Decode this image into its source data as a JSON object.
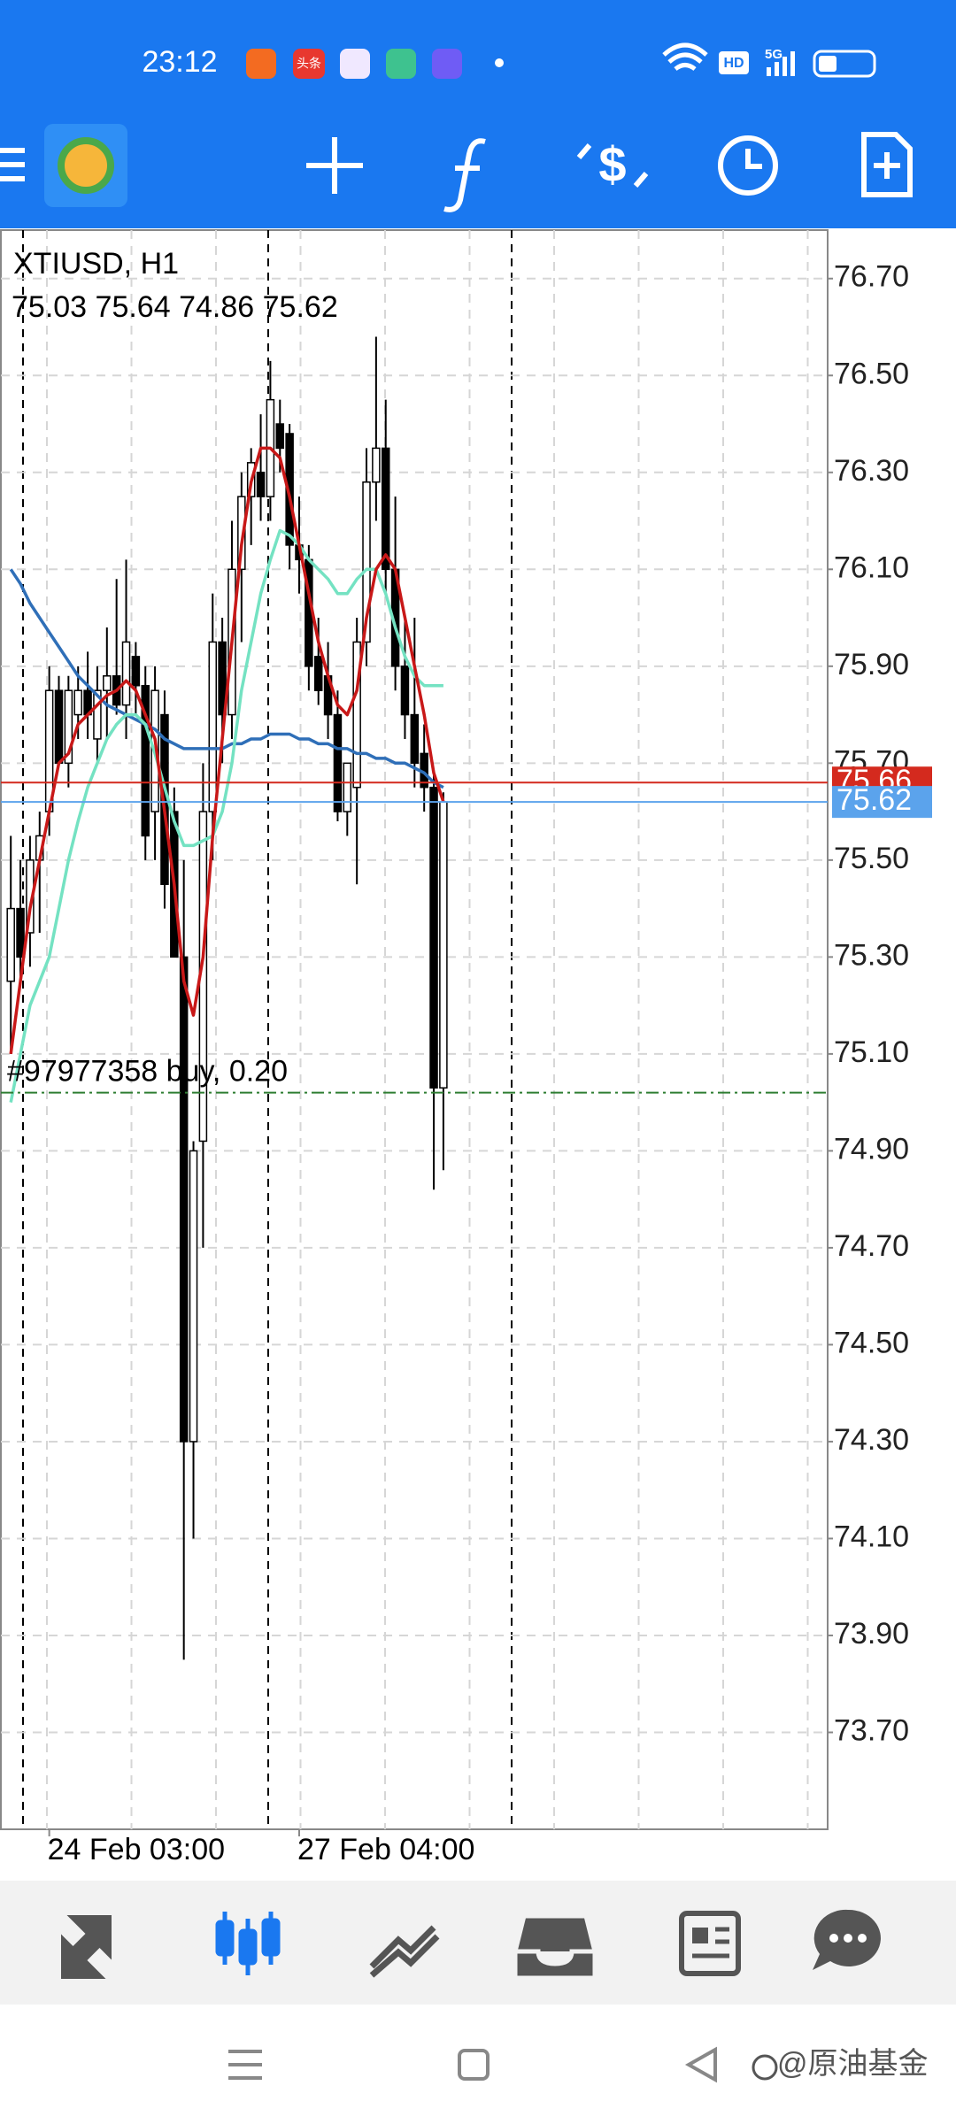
{
  "status_bar": {
    "time": "23:12",
    "app_badge": "头条",
    "network": "HD",
    "signal": "5G"
  },
  "chart_data": {
    "type": "candlestick",
    "title": "XTIUSD, H1",
    "categories": [
      null,
      null,
      null,
      null,
      "24 Feb 03:00",
      null,
      null,
      null,
      null,
      null,
      null,
      null,
      null,
      null,
      null,
      null,
      null,
      null,
      null,
      null,
      null,
      null,
      null,
      null,
      null,
      null,
      null,
      null,
      null,
      null,
      "27 Feb 04:00",
      null,
      null,
      null,
      null,
      null,
      null,
      null,
      null,
      null,
      null,
      null,
      null,
      null,
      null,
      null
    ],
    "open": [
      75.25,
      75.4,
      75.35,
      75.5,
      75.6,
      75.85,
      75.7,
      75.8,
      75.85,
      75.75,
      75.85,
      75.88,
      75.82,
      75.92,
      75.86,
      75.6,
      75.8,
      75.6,
      75.3,
      74.3,
      74.92,
      75.6,
      75.95,
      75.8,
      76.1,
      76.25,
      76.3,
      76.25,
      76.4,
      76.38,
      76.15,
      76.12,
      75.92,
      75.88,
      75.8,
      75.6,
      75.65,
      75.95,
      76.28,
      76.35,
      76.1,
      75.9,
      75.8,
      75.72,
      75.65,
      75.03
    ],
    "high": [
      75.55,
      75.5,
      75.55,
      75.6,
      75.9,
      75.88,
      75.88,
      75.9,
      75.93,
      75.9,
      75.98,
      76.08,
      76.12,
      75.95,
      75.9,
      75.9,
      75.85,
      75.65,
      75.5,
      74.92,
      75.7,
      76.05,
      76.0,
      76.2,
      76.3,
      76.35,
      76.42,
      76.53,
      76.45,
      76.4,
      76.25,
      76.15,
      76.0,
      75.95,
      75.85,
      75.7,
      76.0,
      76.35,
      76.58,
      76.45,
      76.25,
      76.0,
      76.0,
      75.78,
      75.68,
      75.64
    ],
    "low": [
      75.1,
      75.25,
      75.28,
      75.35,
      75.55,
      75.7,
      75.65,
      75.75,
      75.75,
      75.7,
      75.75,
      75.8,
      75.75,
      75.8,
      75.5,
      75.5,
      75.4,
      75.3,
      73.85,
      74.1,
      74.7,
      75.5,
      75.7,
      75.75,
      75.95,
      76.15,
      76.2,
      76.2,
      76.3,
      76.1,
      76.05,
      75.85,
      75.82,
      75.75,
      75.58,
      75.55,
      75.45,
      75.9,
      76.2,
      76.05,
      75.85,
      75.75,
      75.65,
      75.6,
      74.82,
      74.86
    ],
    "close": [
      75.4,
      75.3,
      75.5,
      75.55,
      75.85,
      75.7,
      75.85,
      75.85,
      75.8,
      75.85,
      75.88,
      75.82,
      75.95,
      75.86,
      75.55,
      75.85,
      75.45,
      75.3,
      74.3,
      74.9,
      75.6,
      75.95,
      75.8,
      76.1,
      76.25,
      76.32,
      76.25,
      76.45,
      76.35,
      76.15,
      76.12,
      75.9,
      75.85,
      75.8,
      75.6,
      75.7,
      75.95,
      76.28,
      76.35,
      76.1,
      75.9,
      75.8,
      75.7,
      75.65,
      75.03,
      75.62
    ],
    "up_color": "#ffffff",
    "down_color": "#000000",
    "series": [
      {
        "color": "#2f6fb8",
        "values": [
          76.1,
          76.07,
          76.03,
          76.0,
          75.97,
          75.94,
          75.91,
          75.88,
          75.86,
          75.84,
          75.82,
          75.81,
          75.8,
          75.79,
          75.78,
          75.77,
          75.75,
          75.74,
          75.73,
          75.73,
          75.73,
          75.73,
          75.73,
          75.74,
          75.74,
          75.75,
          75.75,
          75.76,
          75.76,
          75.76,
          75.75,
          75.75,
          75.74,
          75.74,
          75.73,
          75.73,
          75.72,
          75.72,
          75.71,
          75.71,
          75.7,
          75.7,
          75.69,
          75.68,
          75.66,
          75.65
        ]
      },
      {
        "color": "#74e2c2",
        "values": [
          75.0,
          75.1,
          75.2,
          75.25,
          75.3,
          75.4,
          75.5,
          75.58,
          75.65,
          75.7,
          75.75,
          75.78,
          75.8,
          75.8,
          75.78,
          75.72,
          75.65,
          75.58,
          75.53,
          75.53,
          75.54,
          75.55,
          75.6,
          75.7,
          75.85,
          75.95,
          76.05,
          76.12,
          76.18,
          76.17,
          76.15,
          76.12,
          76.1,
          76.08,
          76.05,
          76.05,
          76.08,
          76.1,
          76.1,
          76.05,
          75.98,
          75.92,
          75.88,
          75.86,
          75.86,
          75.86
        ]
      },
      {
        "color": "#c81818",
        "values": [
          75.1,
          75.25,
          75.4,
          75.5,
          75.6,
          75.7,
          75.72,
          75.78,
          75.8,
          75.82,
          75.84,
          75.85,
          75.87,
          75.85,
          75.8,
          75.75,
          75.6,
          75.45,
          75.25,
          75.18,
          75.3,
          75.55,
          75.75,
          75.95,
          76.15,
          76.28,
          76.35,
          76.35,
          76.33,
          76.25,
          76.15,
          76.05,
          75.95,
          75.88,
          75.82,
          75.8,
          75.85,
          76.0,
          76.1,
          76.13,
          76.1,
          76.0,
          75.9,
          75.8,
          75.68,
          75.62
        ]
      }
    ],
    "ylim": [
      73.5,
      76.8
    ],
    "yticks": [
      {
        "value": 76.7,
        "label": "76.70"
      },
      {
        "value": 76.5,
        "label": "76.50"
      },
      {
        "value": 76.3,
        "label": "76.30"
      },
      {
        "value": 76.1,
        "label": "76.10"
      },
      {
        "value": 75.9,
        "label": "75.90"
      },
      {
        "value": 75.7,
        "label": "75.70"
      },
      {
        "value": 75.5,
        "label": "75.50"
      },
      {
        "value": 75.3,
        "label": "75.30"
      },
      {
        "value": 75.1,
        "label": "75.10"
      },
      {
        "value": 74.9,
        "label": "74.90"
      },
      {
        "value": 74.7,
        "label": "74.70"
      },
      {
        "value": 74.5,
        "label": "74.50"
      },
      {
        "value": 74.3,
        "label": "74.30"
      },
      {
        "value": 74.1,
        "label": "74.10"
      },
      {
        "value": 73.9,
        "label": "73.90"
      },
      {
        "value": 73.7,
        "label": "73.70"
      }
    ],
    "grid": true,
    "ask_line": {
      "value": 75.66,
      "color": "#d42a1e"
    },
    "bid_line": {
      "value": 75.62,
      "color": "#5ba3ec"
    },
    "order": {
      "label": "#97977358 buy, 0.20",
      "value": 75.02,
      "color": "#2e7d32"
    }
  },
  "watermark": "@原油基金"
}
